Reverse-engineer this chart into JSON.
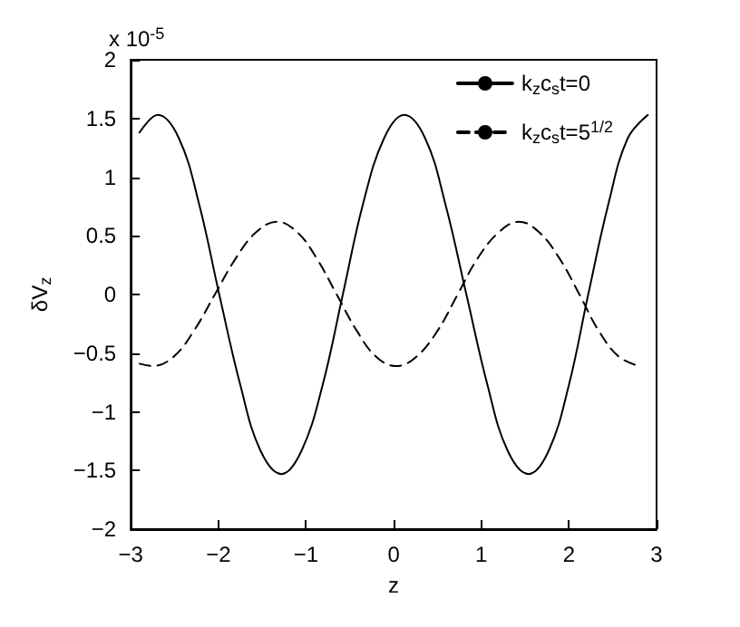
{
  "chart_data": {
    "type": "line",
    "xlabel": "z",
    "ylabel": "δV$_{z}$",
    "annotations": [
      "x 10$^{-5}$"
    ],
    "xlim": [
      -3,
      3
    ],
    "xticks": [
      -3,
      -2,
      -1,
      0,
      1,
      2,
      3
    ],
    "ylim": [
      -2,
      2
    ],
    "yticks": [
      -2,
      -1.5,
      -1,
      -0.5,
      0,
      0.5,
      1,
      1.5,
      2
    ],
    "grid": false,
    "legend": "top right",
    "marker": "none",
    "series": [
      {
        "name": "k$_{z}$c$_{s}$t=0",
        "color": "#000000",
        "line_style": "solid",
        "x": [
          -2.9,
          -2.69,
          -2.45,
          -2.22,
          -1.99,
          -1.75,
          -1.52,
          -1.28,
          -1.05,
          -0.81,
          -0.58,
          -0.35,
          -0.11,
          0.12,
          0.36,
          0.59,
          0.83,
          1.07,
          1.3,
          1.54,
          1.77,
          2.0,
          2.22,
          2.45,
          2.67,
          2.9
        ],
        "values": [
          1.38,
          1.53,
          1.33,
          0.77,
          0,
          -0.77,
          -1.33,
          -1.53,
          -1.33,
          -0.77,
          0,
          0.77,
          1.33,
          1.53,
          1.33,
          0.77,
          0,
          -0.77,
          -1.33,
          -1.53,
          -1.33,
          -0.77,
          0,
          0.77,
          1.33,
          1.53
        ]
      },
      {
        "name": "k$_{z}$c$_{s}$t=5$^{1/2}$",
        "color": "#000000",
        "line_style": "dashed",
        "x": [
          -2.9,
          -2.75,
          -2.51,
          -2.28,
          -2.04,
          -1.8,
          -1.57,
          -1.33,
          -1.1,
          -0.88,
          -0.65,
          -0.42,
          -0.2,
          0.03,
          0.26,
          0.5,
          0.73,
          0.96,
          1.2,
          1.43,
          1.66,
          1.89,
          2.12,
          2.34,
          2.57,
          2.8
        ],
        "values": [
          -0.59,
          -0.61,
          -0.53,
          -0.31,
          0,
          0.31,
          0.53,
          0.62,
          0.53,
          0.31,
          0,
          -0.31,
          -0.53,
          -0.61,
          -0.53,
          -0.31,
          0,
          0.31,
          0.53,
          0.62,
          0.53,
          0.31,
          0,
          -0.31,
          -0.53,
          -0.61
        ]
      }
    ]
  }
}
